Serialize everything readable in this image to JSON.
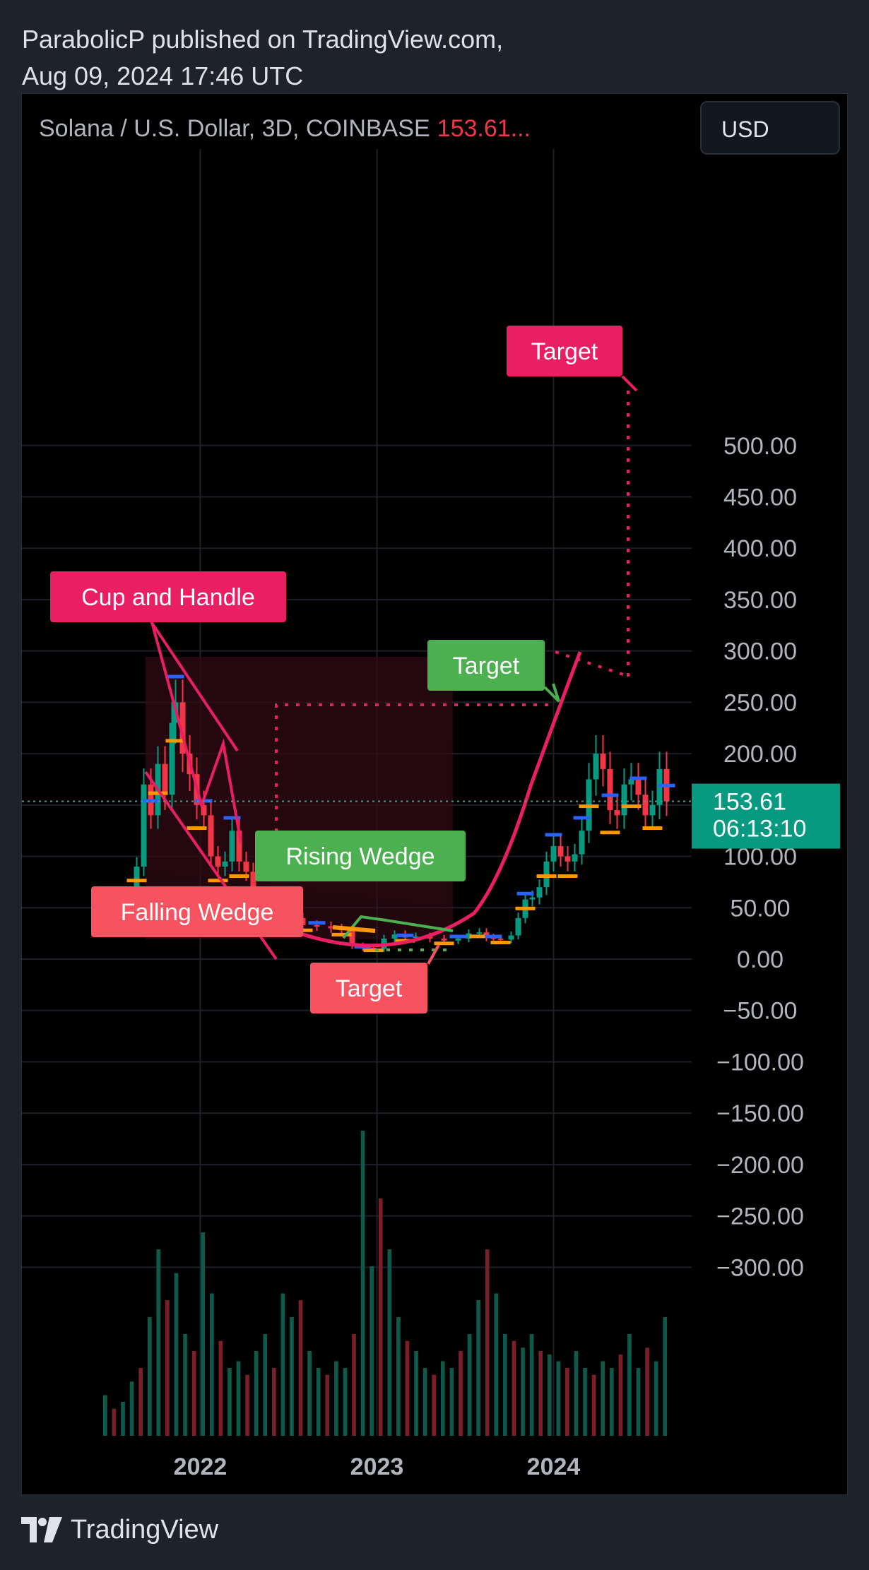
{
  "publisher": {
    "line1": "ParabolicP published on TradingView.com,",
    "line2": "Aug 09, 2024 17:46 UTC"
  },
  "header": {
    "symbol": "Solana / U.S. Dollar, 3D, COINBASE",
    "price": "153.61...",
    "currency": "USD"
  },
  "footer": {
    "brand": "TradingView"
  },
  "colors": {
    "background": "#000000",
    "frame": "#1e222d",
    "grid": "#1c1f27",
    "axis_text": "#b2b5be",
    "up": "#089981",
    "down": "#f23645",
    "pink": "#e91e63",
    "green_label": "#4caf50",
    "red_label": "#f7525f",
    "orange": "#ff9800",
    "blue": "#2962ff",
    "current_price": "#089981"
  },
  "chart_data": {
    "type": "candlestick",
    "title": "Solana / U.S. Dollar, 3D, COINBASE",
    "ylim": [
      -355,
      565
    ],
    "y_ticks": [
      "500.00",
      "450.00",
      "400.00",
      "350.00",
      "300.00",
      "250.00",
      "200.00",
      "150.00",
      "100.00",
      "50.00",
      "0.00",
      "−50.00",
      "−100.00",
      "−150.00",
      "−200.00",
      "−250.00",
      "−300.00"
    ],
    "y_tick_values": [
      500,
      450,
      400,
      350,
      300,
      250,
      200,
      150,
      100,
      50,
      0,
      -50,
      -100,
      -150,
      -200,
      -250,
      -300
    ],
    "x_ticks": [
      "2022",
      "2023",
      "2024"
    ],
    "x_tick_values": [
      2022.0,
      2023.0,
      2024.0
    ],
    "x_range": [
      2021.45,
      2024.75
    ],
    "current_price": {
      "value": 153.61,
      "label": "153.61",
      "countdown": "06:13:10"
    },
    "price_path": [
      [
        2021.45,
        35
      ],
      [
        2021.52,
        30
      ],
      [
        2021.6,
        40
      ],
      [
        2021.64,
        90
      ],
      [
        2021.68,
        170
      ],
      [
        2021.72,
        140
      ],
      [
        2021.76,
        190
      ],
      [
        2021.8,
        160
      ],
      [
        2021.84,
        230
      ],
      [
        2021.86,
        250
      ],
      [
        2021.9,
        200
      ],
      [
        2021.94,
        180
      ],
      [
        2021.98,
        150
      ],
      [
        2022.02,
        140
      ],
      [
        2022.06,
        100
      ],
      [
        2022.1,
        90
      ],
      [
        2022.14,
        95
      ],
      [
        2022.18,
        125
      ],
      [
        2022.22,
        95
      ],
      [
        2022.26,
        85
      ],
      [
        2022.3,
        50
      ],
      [
        2022.36,
        42
      ],
      [
        2022.42,
        38
      ],
      [
        2022.5,
        40
      ],
      [
        2022.58,
        33
      ],
      [
        2022.66,
        32
      ],
      [
        2022.74,
        30
      ],
      [
        2022.8,
        28
      ],
      [
        2022.86,
        13
      ],
      [
        2022.92,
        11
      ],
      [
        2022.98,
        10
      ],
      [
        2023.04,
        20
      ],
      [
        2023.1,
        24
      ],
      [
        2023.16,
        21
      ],
      [
        2023.22,
        22
      ],
      [
        2023.3,
        20
      ],
      [
        2023.38,
        18
      ],
      [
        2023.46,
        20
      ],
      [
        2023.52,
        25
      ],
      [
        2023.58,
        26
      ],
      [
        2023.62,
        21
      ],
      [
        2023.66,
        20
      ],
      [
        2023.7,
        19
      ],
      [
        2023.76,
        23
      ],
      [
        2023.8,
        40
      ],
      [
        2023.84,
        58
      ],
      [
        2023.88,
        60
      ],
      [
        2023.92,
        70
      ],
      [
        2023.96,
        95
      ],
      [
        2024.0,
        110
      ],
      [
        2024.04,
        100
      ],
      [
        2024.08,
        95
      ],
      [
        2024.12,
        102
      ],
      [
        2024.16,
        125
      ],
      [
        2024.2,
        175
      ],
      [
        2024.24,
        200
      ],
      [
        2024.28,
        185
      ],
      [
        2024.32,
        145
      ],
      [
        2024.36,
        140
      ],
      [
        2024.4,
        170
      ],
      [
        2024.44,
        175
      ],
      [
        2024.48,
        160
      ],
      [
        2024.52,
        140
      ],
      [
        2024.56,
        150
      ],
      [
        2024.6,
        185
      ],
      [
        2024.64,
        153.61
      ]
    ],
    "volume": [
      0.12,
      0.08,
      0.1,
      0.16,
      0.2,
      0.35,
      0.55,
      0.4,
      0.48,
      0.3,
      0.25,
      0.6,
      0.42,
      0.28,
      0.2,
      0.22,
      0.18,
      0.25,
      0.3,
      0.2,
      0.42,
      0.35,
      0.4,
      0.25,
      0.2,
      0.18,
      0.22,
      0.2,
      0.3,
      0.9,
      0.5,
      0.7,
      0.55,
      0.35,
      0.28,
      0.25,
      0.2,
      0.18,
      0.22,
      0.2,
      0.25,
      0.3,
      0.4,
      0.55,
      0.42,
      0.3,
      0.28,
      0.26,
      0.3,
      0.25,
      0.24,
      0.22,
      0.2,
      0.25,
      0.2,
      0.18,
      0.22,
      0.2,
      0.24,
      0.3,
      0.2,
      0.26,
      0.22,
      0.35
    ],
    "annotations": [
      {
        "text": "Target",
        "color": "pink",
        "x": 2024.26,
        "y": 418
      },
      {
        "text": "Cup and Handle",
        "color": "pink",
        "x": 2021.7,
        "y": 244
      },
      {
        "text": "Target",
        "color": "green",
        "x": 2023.96,
        "y": 196
      },
      {
        "text": "Rising Wedge",
        "color": "green",
        "x": 2022.5,
        "y": 66
      },
      {
        "text": "Falling Wedge",
        "color": "red",
        "x": 2021.55,
        "y": 30
      },
      {
        "text": "Target",
        "color": "red",
        "x": 2022.82,
        "y": -24
      }
    ]
  }
}
